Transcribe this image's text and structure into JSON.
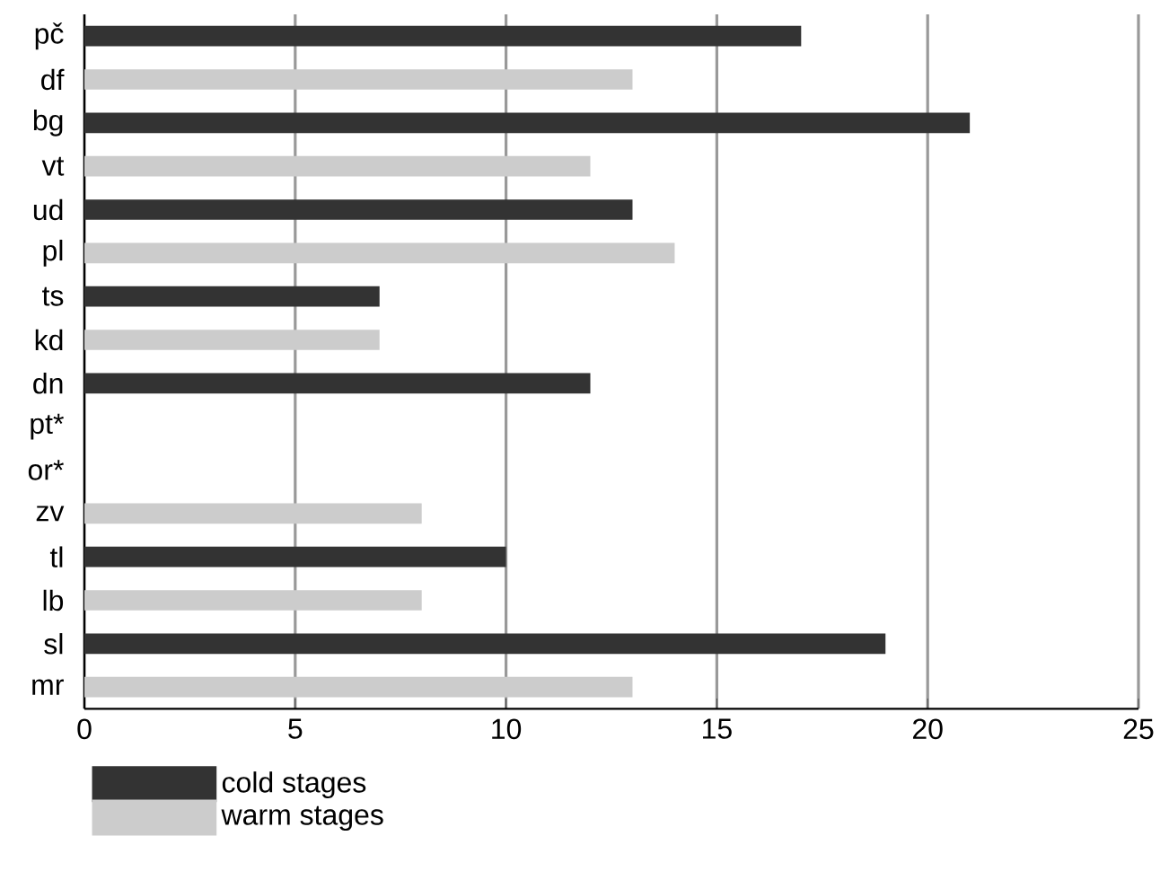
{
  "chart_data": {
    "type": "bar",
    "orientation": "horizontal",
    "categories": [
      "pč",
      "df",
      "bg",
      "vt",
      "ud",
      "pl",
      "ts",
      "kd",
      "dn",
      "pt*",
      "or*",
      "zv",
      "tl",
      "lb",
      "sl",
      "mr"
    ],
    "series": [
      {
        "name": "cold stages",
        "color": "#333333",
        "values": [
          17,
          null,
          21,
          null,
          13,
          null,
          7,
          null,
          12,
          null,
          null,
          null,
          10,
          null,
          19,
          null
        ]
      },
      {
        "name": "warm stages",
        "color": "#cccccc",
        "values": [
          null,
          13,
          null,
          12,
          null,
          14,
          null,
          7,
          null,
          null,
          null,
          8,
          null,
          8,
          null,
          13
        ]
      }
    ],
    "xlim": [
      0,
      25
    ],
    "xticks": [
      0,
      5,
      10,
      15,
      20,
      25
    ],
    "grid": "x",
    "legend": "bottom left"
  }
}
